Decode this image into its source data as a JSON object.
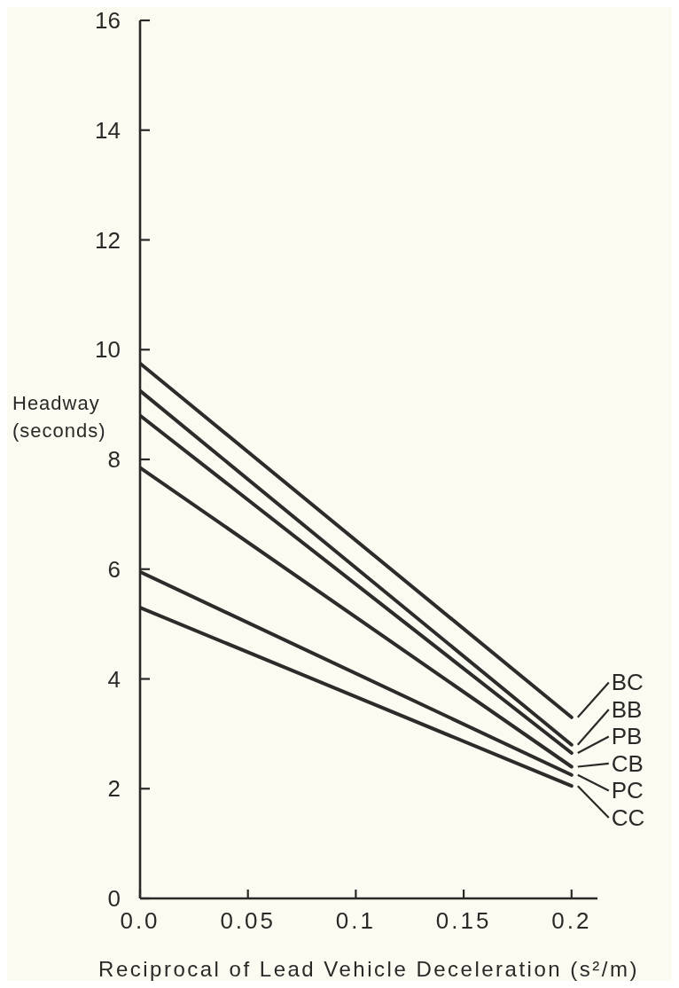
{
  "chart_data": {
    "type": "line",
    "xlabel": "Reciprocal of Lead Vehicle Deceleration (s²/m)",
    "ylabel": "Headway (seconds)",
    "x": [
      0,
      0.2
    ],
    "series": [
      {
        "name": "BC",
        "color": "#2e2b2b",
        "values": [
          9.75,
          3.3
        ]
      },
      {
        "name": "BB",
        "color": "#2e2b2b",
        "values": [
          9.25,
          2.8
        ]
      },
      {
        "name": "PB",
        "color": "#2e2b2b",
        "values": [
          8.8,
          2.65
        ]
      },
      {
        "name": "CB",
        "color": "#2e2b2b",
        "values": [
          7.85,
          2.4
        ]
      },
      {
        "name": "PC",
        "color": "#2e2b2b",
        "values": [
          5.95,
          2.25
        ]
      },
      {
        "name": "CC",
        "color": "#2e2b2b",
        "values": [
          5.3,
          2.05
        ]
      }
    ],
    "xlim": [
      0,
      0.212
    ],
    "xticks": [
      {
        "value": 0,
        "label": "0.0"
      },
      0.05,
      0.1,
      0.15,
      0.2
    ],
    "ylim": [
      0,
      16
    ],
    "yticks": [
      0,
      2,
      4,
      6,
      8,
      10,
      12,
      14,
      16
    ],
    "legend": "right",
    "marker": "none",
    "line_style": "solid"
  }
}
